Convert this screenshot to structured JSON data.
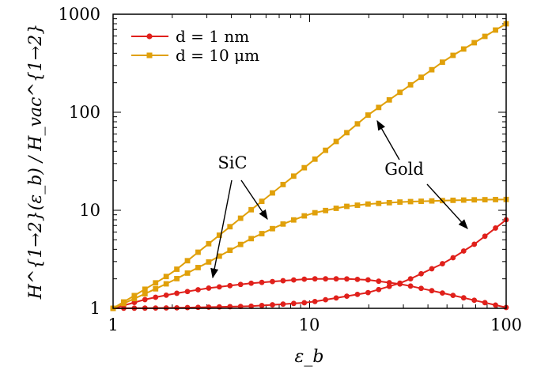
{
  "chart_data": {
    "type": "line",
    "xscale": "log",
    "yscale": "log",
    "xlim": [
      1,
      100
    ],
    "ylim": [
      1,
      1000
    ],
    "xlabel": "ε_b",
    "ylabel": "H^{1→2}(ε_b) / H_vac^{1→2}",
    "x_ticks": [
      "1",
      "10",
      "100"
    ],
    "y_ticks": [
      "1",
      "10",
      "100",
      "1000"
    ],
    "legend_position": "top-left",
    "series": [
      {
        "name": "d = 1 nm",
        "material": "SiC",
        "color": "#e0201b",
        "marker": "circle",
        "x": [
          1,
          1.5,
          2,
          3,
          5,
          7,
          10,
          15,
          20,
          30,
          50,
          70,
          100
        ],
        "y": [
          1,
          1.25,
          1.4,
          1.6,
          1.8,
          1.9,
          2.0,
          2.0,
          1.95,
          1.75,
          1.4,
          1.2,
          1.02
        ]
      },
      {
        "name": "d = 1 nm",
        "material": "Gold",
        "color": "#e0201b",
        "marker": "circle",
        "x": [
          1,
          2,
          5,
          10,
          20,
          30,
          50,
          70,
          100
        ],
        "y": [
          1,
          1.01,
          1.05,
          1.15,
          1.45,
          1.85,
          3.0,
          4.6,
          8.0
        ]
      },
      {
        "name": "d = 10 μm",
        "material": "SiC",
        "color": "#e0a00a",
        "marker": "square",
        "x": [
          1,
          1.5,
          2,
          3,
          5,
          7,
          10,
          15,
          20,
          30,
          50,
          70,
          100
        ],
        "y": [
          1,
          1.45,
          1.9,
          2.9,
          5.1,
          7.0,
          9.2,
          10.9,
          11.6,
          12.2,
          12.6,
          12.8,
          12.9
        ]
      },
      {
        "name": "d = 10 μm",
        "material": "Gold",
        "color": "#e0a00a",
        "marker": "square",
        "x": [
          1,
          2,
          5,
          10,
          20,
          50,
          100
        ],
        "y": [
          1,
          2.3,
          10,
          30,
          95,
          350,
          800
        ]
      }
    ],
    "legend": [
      {
        "label": "d = 1 nm",
        "color": "#e0201b",
        "marker": "circle"
      },
      {
        "label": "d = 10 μm",
        "color": "#e0a00a",
        "marker": "square"
      }
    ],
    "annotations": [
      {
        "text": "SiC"
      },
      {
        "text": "Gold"
      }
    ]
  }
}
